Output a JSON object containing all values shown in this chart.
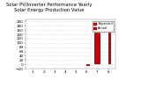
{
  "title": "Solar PV/Inverter Performance Yearly Solar Energy Production Value",
  "categories": [
    "1",
    "2",
    "3",
    "4",
    "5",
    "6",
    "7",
    "8"
  ],
  "values_expected": [
    0,
    0,
    0,
    0,
    0,
    0,
    180,
    0
  ],
  "values_actual": [
    0,
    0,
    0,
    0,
    0,
    -8,
    160,
    170
  ],
  "bar_color_expected": "#cc0000",
  "bar_color_actual": "#cc0000",
  "background_color": "#ffffff",
  "ylim": [
    -20,
    210
  ],
  "yticks": [
    -20,
    0,
    20,
    40,
    60,
    80,
    100,
    120,
    140,
    160,
    180,
    200
  ],
  "title_fontsize": 3.8,
  "tick_fontsize": 3.0,
  "grid_color": "#cccccc",
  "legend_labels": [
    "Expected",
    "Actual"
  ],
  "legend_colors": [
    "#cc0000",
    "#cc0000"
  ],
  "bar_width": 0.3
}
